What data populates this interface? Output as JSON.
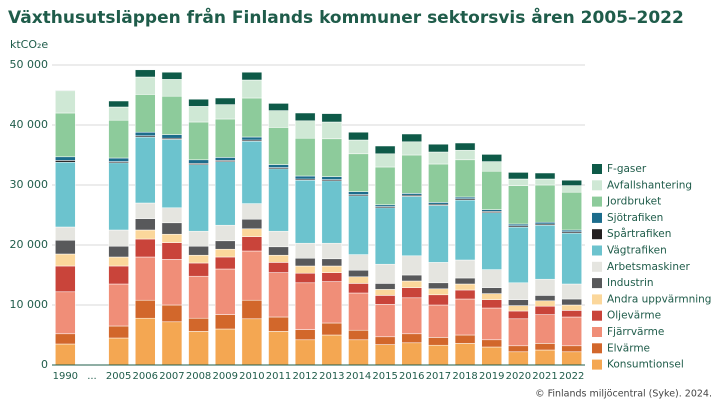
{
  "chart_data": {
    "type": "stacked_bar",
    "title": "Växthusutsläppen från Finlands kommuner sektorsvis åren 2005–2022",
    "y_label": "ktCO₂e",
    "source": "© Finlands miljöcentral (Syke). 2024.",
    "categories": [
      "1990",
      "...",
      "2005",
      "2006",
      "2007",
      "2008",
      "2009",
      "2010",
      "2011",
      "2012",
      "2013",
      "2014",
      "2015",
      "2016",
      "2017",
      "2018",
      "2019",
      "2020",
      "2021",
      "2022"
    ],
    "ylim": [
      0,
      50000
    ],
    "yticks": [
      0,
      {
        "value": 10000,
        "label": "10 000"
      },
      {
        "value": 20000,
        "label": "20 000"
      },
      {
        "value": 30000,
        "label": "30 000"
      },
      {
        "value": 40000,
        "label": "40 000"
      },
      {
        "value": 50000,
        "label": "50 000"
      }
    ],
    "grid": true,
    "legend": "right",
    "series": [
      {
        "name": "Konsumtionsel",
        "color": "#f4a752",
        "values": [
          3500,
          null,
          4500,
          7800,
          7200,
          5600,
          6000,
          7700,
          5600,
          4200,
          5000,
          4200,
          3400,
          3700,
          3300,
          3600,
          3000,
          2200,
          2500,
          2200
        ]
      },
      {
        "name": "Elvärme",
        "color": "#d2672b",
        "values": [
          1700,
          null,
          2000,
          3000,
          2800,
          2200,
          2400,
          3100,
          2400,
          1700,
          2000,
          1600,
          1300,
          1500,
          1300,
          1400,
          1200,
          1000,
          1100,
          1000
        ]
      },
      {
        "name": "Fjärrvärme",
        "color": "#f08e78",
        "values": [
          7000,
          null,
          7000,
          7200,
          7600,
          7000,
          7600,
          8200,
          7400,
          7800,
          6900,
          6200,
          5400,
          6000,
          5400,
          6000,
          5300,
          4500,
          4800,
          4800
        ]
      },
      {
        "name": "Oljevärme",
        "color": "#c9443a",
        "values": [
          4300,
          null,
          3000,
          3000,
          2800,
          2200,
          2000,
          2400,
          1700,
          1600,
          1500,
          1600,
          1500,
          1700,
          1700,
          1500,
          1400,
          1300,
          1400,
          1100
        ]
      },
      {
        "name": "Andra uppvärmning",
        "color": "#fbd79b",
        "values": [
          2000,
          null,
          1500,
          1500,
          1400,
          1300,
          1300,
          1300,
          1200,
          1200,
          1100,
          1100,
          1000,
          1100,
          1000,
          1000,
          1000,
          900,
          900,
          900
        ]
      },
      {
        "name": "Industrin",
        "color": "#58595b",
        "values": [
          2300,
          null,
          1800,
          1900,
          1900,
          1500,
          1400,
          1600,
          1400,
          1300,
          1200,
          1100,
          1000,
          1000,
          1000,
          1000,
          1000,
          1000,
          900,
          1000
        ]
      },
      {
        "name": "Arbetsmaskiner",
        "color": "#e5e5e0",
        "values": [
          2200,
          null,
          2700,
          2600,
          2500,
          2500,
          2600,
          2600,
          2600,
          2500,
          2600,
          2600,
          3200,
          3200,
          3400,
          3000,
          3000,
          2800,
          2700,
          2500
        ]
      },
      {
        "name": "Vägtrafiken",
        "color": "#6cc3ce",
        "values": [
          10800,
          null,
          11200,
          11000,
          11400,
          11100,
          10600,
          10400,
          10400,
          10500,
          10400,
          9800,
          9400,
          9900,
          9500,
          10000,
          9500,
          9300,
          9000,
          8500
        ]
      },
      {
        "name": "Spårtrafiken",
        "color": "#231f20",
        "values": [
          300,
          null,
          200,
          200,
          200,
          200,
          200,
          200,
          200,
          200,
          200,
          200,
          200,
          200,
          200,
          200,
          200,
          200,
          200,
          200
        ]
      },
      {
        "name": "Sjötrafiken",
        "color": "#1c6c8c",
        "values": [
          600,
          null,
          600,
          600,
          600,
          600,
          500,
          500,
          500,
          500,
          500,
          500,
          300,
          300,
          300,
          300,
          300,
          300,
          300,
          300
        ]
      },
      {
        "name": "Jordbruket",
        "color": "#8dcb9b",
        "values": [
          7300,
          null,
          6300,
          6300,
          6400,
          6300,
          6400,
          6500,
          6200,
          6300,
          6300,
          6300,
          6300,
          6400,
          6400,
          6200,
          6400,
          6400,
          6200,
          6300
        ]
      },
      {
        "name": "Avfallshantering",
        "color": "#cfe8d5",
        "values": [
          3700,
          null,
          2200,
          2900,
          2800,
          2600,
          2400,
          3000,
          2800,
          2900,
          2800,
          2300,
          2200,
          2200,
          2000,
          1600,
          1600,
          1100,
          1000,
          1100
        ]
      },
      {
        "name": "F-gaser",
        "color": "#0e5a48",
        "values": [
          100,
          null,
          1000,
          1200,
          1200,
          1200,
          1100,
          1300,
          1200,
          1300,
          1400,
          1300,
          1300,
          1300,
          1300,
          1200,
          1200,
          1100,
          1000,
          900
        ]
      }
    ]
  }
}
